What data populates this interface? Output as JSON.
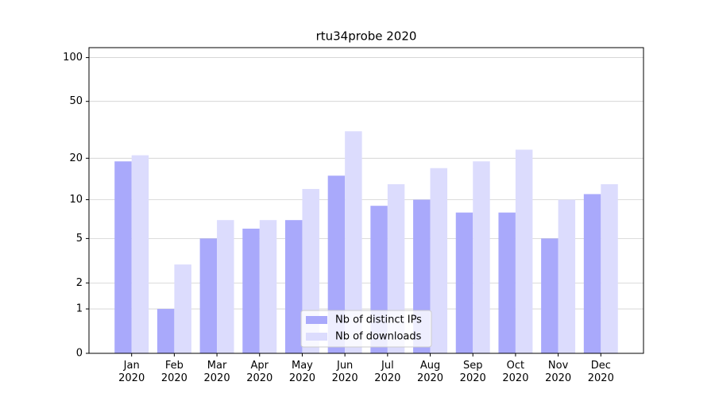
{
  "chart_data": {
    "type": "bar",
    "title": "rtu34probe 2020",
    "categories": [
      "Jan\n2020",
      "Feb\n2020",
      "Mar\n2020",
      "Apr\n2020",
      "May\n2020",
      "Jun\n2020",
      "Jul\n2020",
      "Aug\n2020",
      "Sep\n2020",
      "Oct\n2020",
      "Nov\n2020",
      "Dec\n2020"
    ],
    "series": [
      {
        "name": "Nb of distinct IPs",
        "color": "#a9a9fb",
        "values": [
          19,
          1,
          5,
          6,
          7,
          15,
          9,
          10,
          8,
          8,
          5,
          11
        ]
      },
      {
        "name": "Nb of downloads",
        "color": "#dcdcfd",
        "values": [
          21,
          3,
          7,
          7,
          12,
          31,
          13,
          17,
          19,
          23,
          10,
          13
        ]
      }
    ],
    "yscale": "log1p",
    "ylim": [
      0,
      117
    ],
    "yticks": [
      0,
      1,
      2,
      5,
      10,
      20,
      50,
      100
    ],
    "grid": true,
    "legend": "lower center"
  }
}
